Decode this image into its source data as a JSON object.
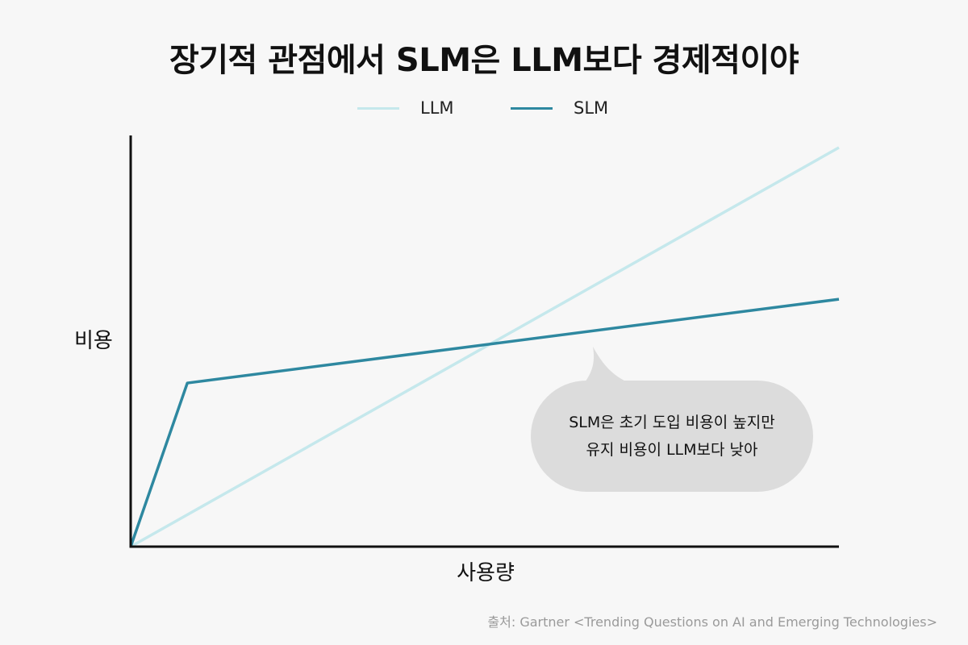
{
  "chart_data": {
    "type": "line",
    "title": "장기적 관점에서 SLM은 LLM보다 경제적이야",
    "xlabel": "사용량",
    "ylabel": "비용",
    "x_ticks_shown": false,
    "y_ticks_shown": false,
    "grid": false,
    "legend_position": "top-center",
    "xlim": [
      0,
      100
    ],
    "ylim": [
      0,
      100
    ],
    "series": [
      {
        "name": "LLM",
        "color": "#c5e8ec",
        "points": [
          [
            0,
            0
          ],
          [
            100,
            100
          ]
        ]
      },
      {
        "name": "SLM",
        "color": "#2e88a0",
        "points": [
          [
            0,
            0
          ],
          [
            8,
            41
          ],
          [
            100,
            62
          ]
        ]
      }
    ],
    "annotation": {
      "line1": "SLM은 초기 도입 비용이 높지만",
      "line2": "유지 비용이 LLM보다 낮아"
    },
    "source": "출처: Gartner <Trending Questions on AI and Emerging Technologies>"
  }
}
